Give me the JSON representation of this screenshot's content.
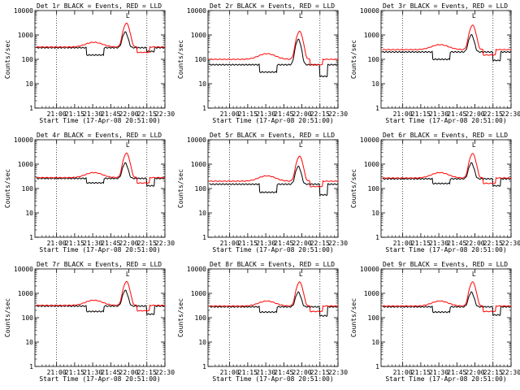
{
  "colors": {
    "events": "#000000",
    "lld": "#ff0000",
    "axis": "#000000",
    "background": "#ffffff"
  },
  "chart_data": [
    {
      "type": "line",
      "title": "Det 1r BLACK = Events, RED = LLD",
      "xlabel": "Start Time (17-Apr-08 20:51:00)",
      "ylabel": "Counts/sec",
      "yscale": "log",
      "ylim": [
        1,
        10000
      ],
      "y_ticks": [
        "1",
        "10",
        "100",
        "1000",
        "10000"
      ],
      "x_ticks": [
        "21:00",
        "21:15",
        "21:30",
        "21:45",
        "22:00",
        "22:15",
        "22:30"
      ],
      "flag_label": "L",
      "series": [
        {
          "name": "Events",
          "base": 300,
          "dip": [
            150,
            210
          ],
          "peak": 1300
        },
        {
          "name": "LLD",
          "base": 320,
          "bump": 500,
          "peak": 3000
        }
      ]
    },
    {
      "type": "line",
      "title": "Det 2r BLACK = Events, RED = LLD",
      "xlabel": "Start Time (17-Apr-08 20:51:00)",
      "ylabel": "Counts/sec",
      "yscale": "log",
      "ylim": [
        1,
        10000
      ],
      "y_ticks": [
        "1",
        "10",
        "100",
        "1000",
        "10000"
      ],
      "x_ticks": [
        "21:00",
        "21:15",
        "21:30",
        "21:45",
        "22:00",
        "22:15",
        "22:30"
      ],
      "flag_label": "L",
      "series": [
        {
          "name": "Events",
          "base": 60,
          "dip": [
            30,
            20
          ],
          "peak": 650
        },
        {
          "name": "LLD",
          "base": 100,
          "bump": 170,
          "peak": 1400
        }
      ]
    },
    {
      "type": "line",
      "title": "Det 3r BLACK = Events, RED = LLD",
      "xlabel": "Start Time (17-Apr-08 20:51:00)",
      "ylabel": "Counts/sec",
      "yscale": "log",
      "ylim": [
        1,
        10000
      ],
      "y_ticks": [
        "1",
        "10",
        "100",
        "1000",
        "10000"
      ],
      "x_ticks": [
        "21:00",
        "21:15",
        "21:30",
        "21:45",
        "22:00",
        "22:15",
        "22:30"
      ],
      "flag_label": "L",
      "series": [
        {
          "name": "Events",
          "base": 200,
          "dip": [
            100,
            90
          ],
          "peak": 1000
        },
        {
          "name": "LLD",
          "base": 250,
          "bump": 400,
          "peak": 2500
        }
      ]
    },
    {
      "type": "line",
      "title": "Det 4r BLACK = Events, RED = LLD",
      "xlabel": "Start Time (17-Apr-08 20:51:00)",
      "ylabel": "Counts/sec",
      "yscale": "log",
      "ylim": [
        1,
        10000
      ],
      "y_ticks": [
        "1",
        "10",
        "100",
        "1000",
        "10000"
      ],
      "x_ticks": [
        "21:00",
        "21:15",
        "21:30",
        "21:45",
        "22:00",
        "22:15",
        "22:30"
      ],
      "flag_label": "L",
      "series": [
        {
          "name": "Events",
          "base": 260,
          "dip": [
            170,
            130
          ],
          "peak": 1100
        },
        {
          "name": "LLD",
          "base": 280,
          "bump": 450,
          "peak": 2800
        }
      ]
    },
    {
      "type": "line",
      "title": "Det 5r BLACK = Events, RED = LLD",
      "xlabel": "Start Time (17-Apr-08 20:51:00)",
      "ylabel": "Counts/sec",
      "yscale": "log",
      "ylim": [
        1,
        10000
      ],
      "y_ticks": [
        "1",
        "10",
        "100",
        "1000",
        "10000"
      ],
      "x_ticks": [
        "21:00",
        "21:15",
        "21:30",
        "21:45",
        "22:00",
        "22:15",
        "22:30"
      ],
      "flag_label": "L",
      "series": [
        {
          "name": "Events",
          "base": 150,
          "dip": [
            70,
            55
          ],
          "peak": 800
        },
        {
          "name": "LLD",
          "base": 200,
          "bump": 330,
          "peak": 2100
        }
      ]
    },
    {
      "type": "line",
      "title": "Det 6r BLACK = Events, RED = LLD",
      "xlabel": "Start Time (17-Apr-08 20:51:00)",
      "ylabel": "Counts/sec",
      "yscale": "log",
      "ylim": [
        1,
        10000
      ],
      "y_ticks": [
        "1",
        "10",
        "100",
        "1000",
        "10000"
      ],
      "x_ticks": [
        "21:00",
        "21:15",
        "21:30",
        "21:45",
        "22:00",
        "22:15",
        "22:30"
      ],
      "flag_label": "L",
      "series": [
        {
          "name": "Events",
          "base": 250,
          "dip": [
            160,
            130
          ],
          "peak": 1100
        },
        {
          "name": "LLD",
          "base": 270,
          "bump": 450,
          "peak": 2700
        }
      ]
    },
    {
      "type": "line",
      "title": "Det 7r BLACK = Events, RED = LLD",
      "xlabel": "Start Time (17-Apr-08 20:51:00)",
      "ylabel": "Counts/sec",
      "yscale": "log",
      "ylim": [
        1,
        10000
      ],
      "y_ticks": [
        "1",
        "10",
        "100",
        "1000",
        "10000"
      ],
      "x_ticks": [
        "21:00",
        "21:15",
        "21:30",
        "21:45",
        "22:00",
        "22:15",
        "22:30"
      ],
      "flag_label": "L",
      "series": [
        {
          "name": "Events",
          "base": 300,
          "dip": [
            180,
            140
          ],
          "peak": 1300
        },
        {
          "name": "LLD",
          "base": 320,
          "bump": 520,
          "peak": 3000
        }
      ]
    },
    {
      "type": "line",
      "title": "Det 8r BLACK = Events, RED = LLD",
      "xlabel": "Start Time (17-Apr-08 20:51:00)",
      "ylabel": "Counts/sec",
      "yscale": "log",
      "ylim": [
        1,
        10000
      ],
      "y_ticks": [
        "1",
        "10",
        "100",
        "1000",
        "10000"
      ],
      "x_ticks": [
        "21:00",
        "21:15",
        "21:30",
        "21:45",
        "22:00",
        "22:15",
        "22:30"
      ],
      "flag_label": "L",
      "series": [
        {
          "name": "Events",
          "base": 280,
          "dip": [
            170,
            120
          ],
          "peak": 1100
        },
        {
          "name": "LLD",
          "base": 300,
          "bump": 480,
          "peak": 2900
        }
      ]
    },
    {
      "type": "line",
      "title": "Det 9r BLACK = Events, RED = LLD",
      "xlabel": "Start Time (17-Apr-08 20:51:00)",
      "ylabel": "Counts/sec",
      "yscale": "log",
      "ylim": [
        1,
        10000
      ],
      "y_ticks": [
        "1",
        "10",
        "100",
        "1000",
        "10000"
      ],
      "x_ticks": [
        "21:00",
        "21:15",
        "21:30",
        "21:45",
        "22:00",
        "22:15",
        "22:30"
      ],
      "flag_label": "L",
      "series": [
        {
          "name": "Events",
          "base": 280,
          "dip": [
            170,
            130
          ],
          "peak": 1100
        },
        {
          "name": "LLD",
          "base": 300,
          "bump": 480,
          "peak": 2900
        }
      ]
    }
  ]
}
